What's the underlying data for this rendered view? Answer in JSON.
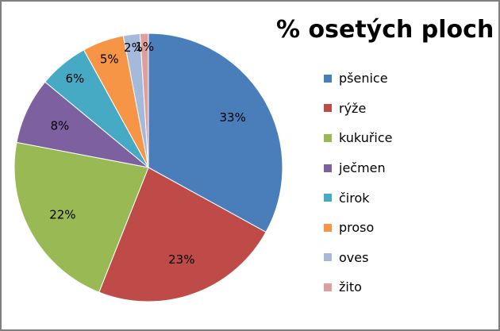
{
  "chart_data": {
    "type": "pie",
    "title": "% osetých ploch",
    "legend_position": "right",
    "slices": [
      {
        "name": "pšenice",
        "value": 33,
        "label": "33%",
        "color": "#4a7ebb"
      },
      {
        "name": "rýže",
        "value": 23,
        "label": "23%",
        "color": "#be4b48"
      },
      {
        "name": "kukuřice",
        "value": 22,
        "label": "22%",
        "color": "#98b954"
      },
      {
        "name": "ječmen",
        "value": 8,
        "label": "8%",
        "color": "#7d60a0"
      },
      {
        "name": "čirok",
        "value": 6,
        "label": "6%",
        "color": "#46aac5"
      },
      {
        "name": "proso",
        "value": 5,
        "label": "5%",
        "color": "#f69546"
      },
      {
        "name": "oves",
        "value": 2,
        "label": "2%",
        "color": "#a5b9db"
      },
      {
        "name": "žito",
        "value": 1,
        "label": "1%",
        "color": "#dd9e9c"
      }
    ]
  }
}
